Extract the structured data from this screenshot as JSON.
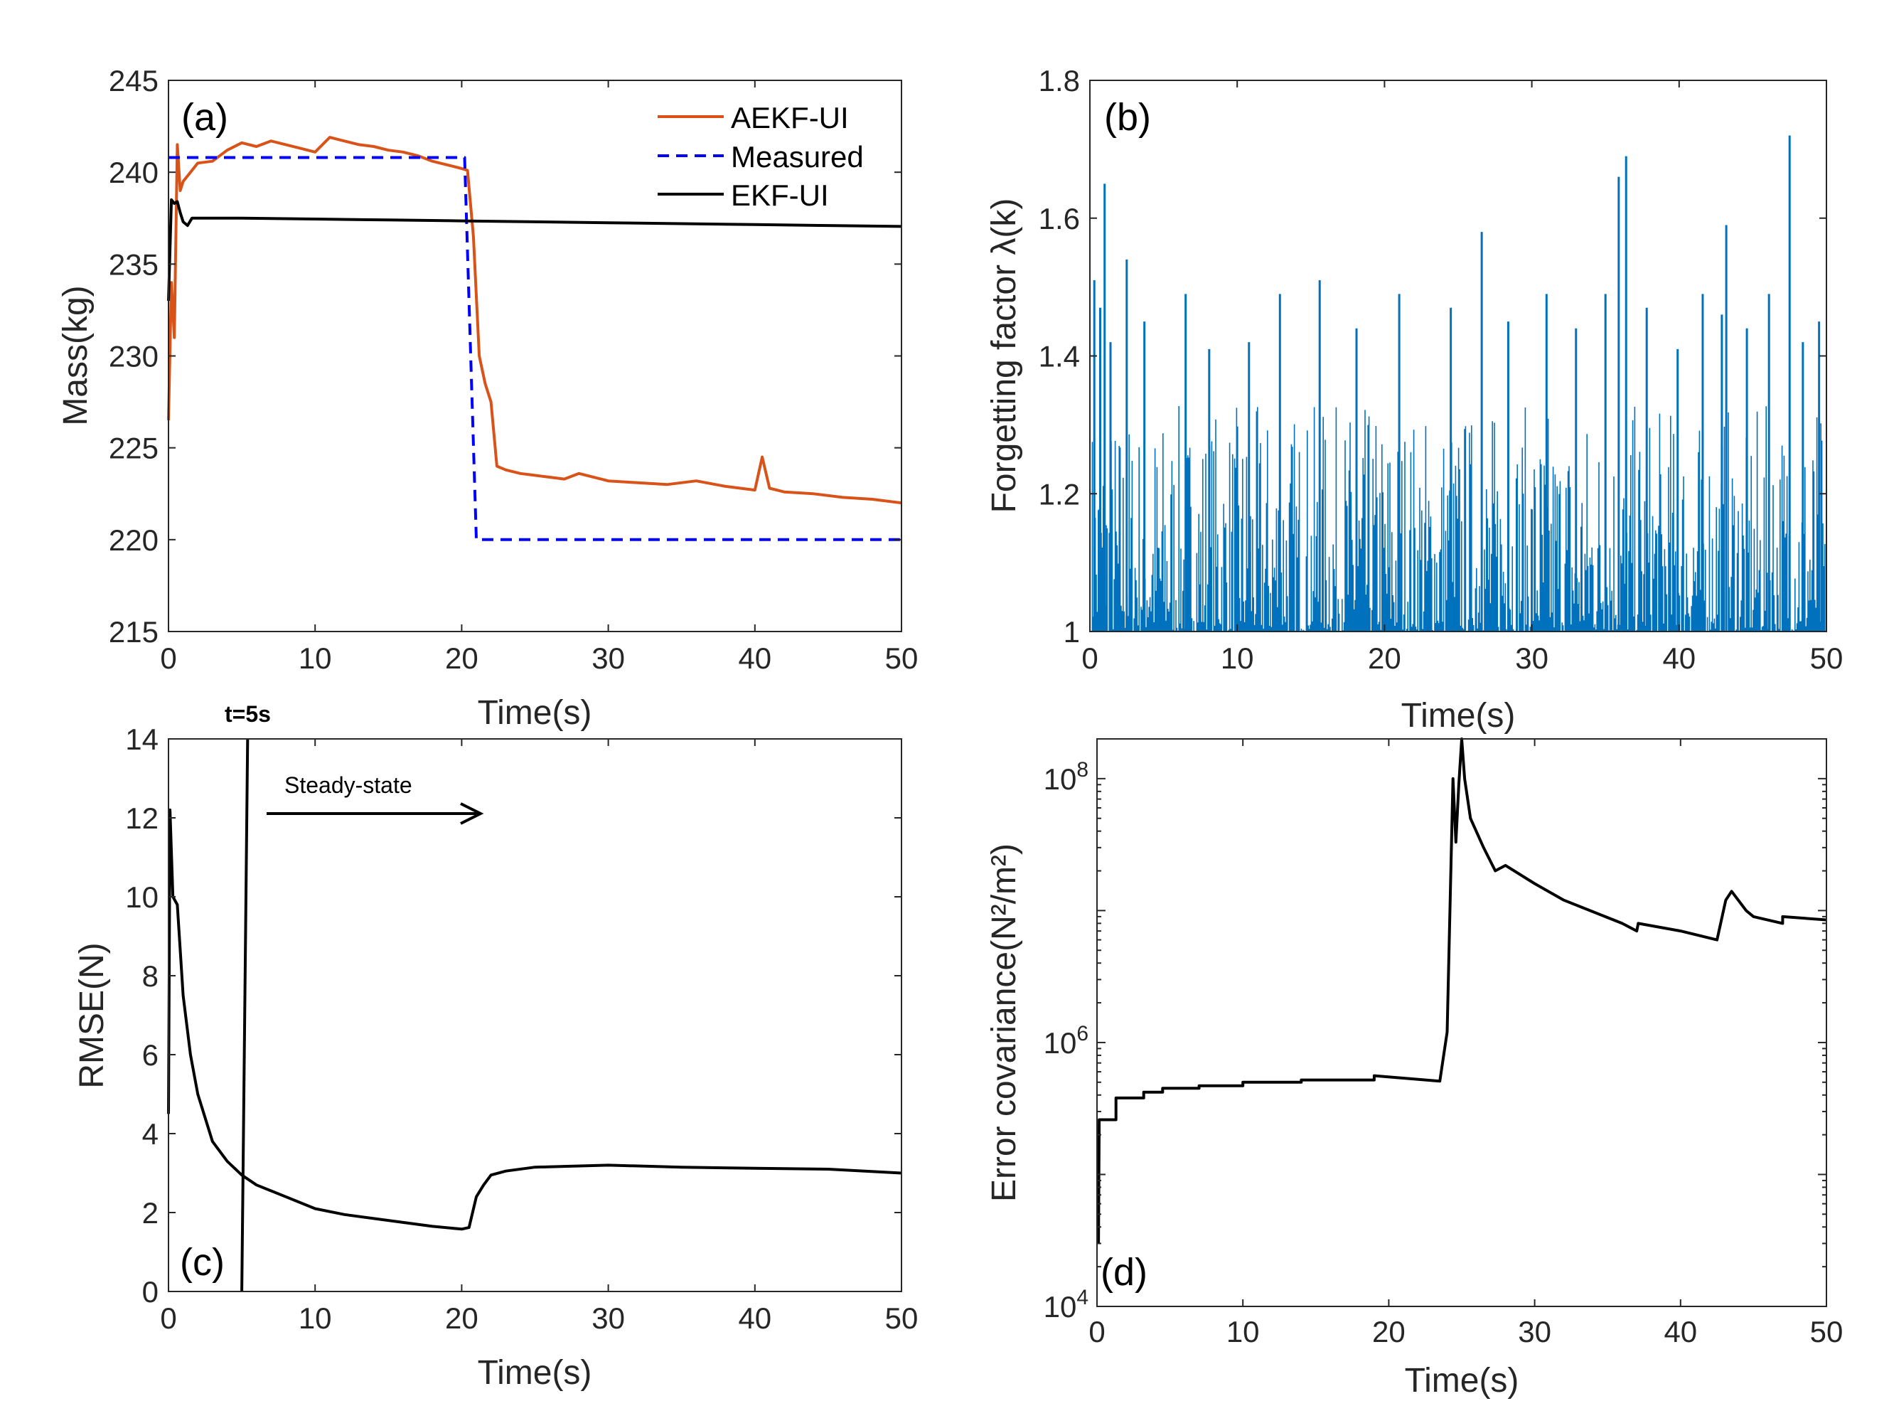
{
  "colors": {
    "orange": "#D95319",
    "blue": "#0000FF",
    "black": "#000000",
    "matlab_blue": "#0072BD"
  },
  "chart_data": [
    {
      "panel": "a",
      "type": "line",
      "panel_label": "(a)",
      "xlabel": "Time(s)",
      "ylabel": "Mass(kg)",
      "xlim": [
        0,
        50
      ],
      "ylim": [
        215,
        245
      ],
      "xticks": [
        0,
        10,
        20,
        30,
        40,
        50
      ],
      "yticks": [
        215,
        220,
        225,
        230,
        235,
        240,
        245
      ],
      "legend": {
        "position": "top-right",
        "entries": [
          "AEKF-UI",
          "Measured",
          "EKF-UI"
        ]
      },
      "series": [
        {
          "name": "AEKF-UI",
          "color": "#D95319",
          "style": "solid",
          "x": [
            0,
            0.2,
            0.4,
            0.6,
            0.8,
            1,
            1.5,
            2,
            3,
            4,
            5,
            6,
            7,
            8,
            9,
            10,
            11,
            12,
            13,
            14,
            15,
            16,
            17,
            18,
            19,
            20,
            20.4,
            20.8,
            21.2,
            21.6,
            22,
            22.4,
            23,
            24,
            25,
            26,
            27,
            28,
            30,
            32,
            34,
            36,
            38,
            40,
            40.5,
            41,
            42,
            44,
            46,
            48,
            50
          ],
          "y": [
            226.5,
            234,
            231,
            241.5,
            239,
            239.5,
            240,
            240.5,
            240.6,
            241.2,
            241.6,
            241.4,
            241.7,
            241.5,
            241.3,
            241.1,
            241.9,
            241.7,
            241.5,
            241.4,
            241.2,
            241.1,
            240.9,
            240.6,
            240.4,
            240.2,
            240.1,
            236.5,
            230,
            228.5,
            227.5,
            224,
            223.8,
            223.6,
            223.5,
            223.4,
            223.3,
            223.6,
            223.2,
            223.1,
            223.0,
            223.2,
            222.9,
            222.7,
            224.5,
            222.8,
            222.6,
            222.5,
            222.3,
            222.2,
            222.0
          ]
        },
        {
          "name": "Measured",
          "color": "#0000FF",
          "style": "dashed",
          "x": [
            0,
            20.2,
            21,
            50
          ],
          "y": [
            240.8,
            240.8,
            220,
            220
          ]
        },
        {
          "name": "EKF-UI",
          "color": "#000000",
          "style": "solid",
          "x": [
            0,
            0.2,
            0.4,
            0.6,
            0.8,
            1,
            1.3,
            1.6,
            2,
            5,
            10,
            15,
            20,
            25,
            30,
            35,
            40,
            45,
            50
          ],
          "y": [
            233,
            238.5,
            238.3,
            238.4,
            237.8,
            237.3,
            237.1,
            237.5,
            237.5,
            237.5,
            237.45,
            237.4,
            237.35,
            237.3,
            237.25,
            237.2,
            237.15,
            237.1,
            237.05
          ]
        }
      ]
    },
    {
      "panel": "b",
      "type": "line",
      "panel_label": "(b)",
      "xlabel": "Time(s)",
      "ylabel": "Forgetting factor λ(k)",
      "xlim": [
        0,
        50
      ],
      "ylim": [
        1,
        1.8
      ],
      "xticks": [
        0,
        10,
        20,
        30,
        40,
        50
      ],
      "yticks": [
        1,
        1.2,
        1.4,
        1.6,
        1.8
      ],
      "series": [
        {
          "name": "λ(k)",
          "color": "#0072BD",
          "style": "solid",
          "note": "dense oscillating signal mostly between 1.0 and about 1.3",
          "spikes_x": [
            0.3,
            0.7,
            1.0,
            1.4,
            2.5,
            3.7,
            6.5,
            8.1,
            10.8,
            12.9,
            15.6,
            18.1,
            21.0,
            24.5,
            26.6,
            28.4,
            31.0,
            33.0,
            35.0,
            35.9,
            36.4,
            37.8,
            39.9,
            41.6,
            42.9,
            43.2,
            44.6,
            46.1,
            47.5,
            48.4,
            49.5
          ],
          "spikes_y": [
            1.51,
            1.47,
            1.65,
            1.42,
            1.54,
            1.45,
            1.49,
            1.41,
            1.42,
            1.49,
            1.51,
            1.44,
            1.49,
            1.47,
            1.58,
            1.45,
            1.49,
            1.44,
            1.49,
            1.66,
            1.69,
            1.47,
            1.41,
            1.49,
            1.46,
            1.59,
            1.44,
            1.49,
            1.72,
            1.42,
            1.45
          ]
        }
      ]
    },
    {
      "panel": "c",
      "type": "line",
      "panel_label": "(c)",
      "xlabel": "Time(s)",
      "ylabel": "RMSE(N)",
      "xlim": [
        0,
        50
      ],
      "ylim": [
        0,
        14
      ],
      "xticks": [
        0,
        10,
        20,
        30,
        40,
        50
      ],
      "yticks": [
        0,
        2,
        4,
        6,
        8,
        10,
        12,
        14
      ],
      "annotations": [
        {
          "text": "t=5s",
          "x": 5
        },
        {
          "text": "Steady-state",
          "x_start": 6.5,
          "x_end": 21.5,
          "y": 12.1
        }
      ],
      "series": [
        {
          "name": "RMSE",
          "color": "#000000",
          "style": "solid",
          "x": [
            0,
            0.1,
            0.3,
            0.6,
            1,
            1.5,
            2,
            3,
            4,
            5,
            6,
            7,
            8,
            10,
            12,
            15,
            18,
            20,
            20.5,
            21,
            21.5,
            22,
            23,
            25,
            30,
            35,
            40,
            45,
            50
          ],
          "y": [
            4.5,
            12.2,
            10,
            9.8,
            7.5,
            6.0,
            5.0,
            3.8,
            3.3,
            2.95,
            2.7,
            2.55,
            2.4,
            2.1,
            1.95,
            1.8,
            1.65,
            1.58,
            1.62,
            2.4,
            2.7,
            2.95,
            3.05,
            3.15,
            3.2,
            3.15,
            3.12,
            3.1,
            3.0
          ]
        },
        {
          "name": "t=5s marker",
          "color": "#000000",
          "style": "solid",
          "x": [
            5.0,
            5.4
          ],
          "y": [
            0,
            14
          ]
        }
      ]
    },
    {
      "panel": "d",
      "type": "line",
      "panel_label": "(d)",
      "xlabel": "Time(s)",
      "ylabel": "Error covariance(N²/m²)",
      "yscale": "log",
      "xlim": [
        0,
        50
      ],
      "ylim": [
        10000,
        200000000
      ],
      "xticks": [
        0,
        10,
        20,
        30,
        40,
        50
      ],
      "ytick_labels": [
        {
          "base": "10",
          "exp": "4"
        },
        {
          "base": "10",
          "exp": "6"
        },
        {
          "base": "10",
          "exp": "8"
        }
      ],
      "series": [
        {
          "name": "Error covariance",
          "color": "#000000",
          "style": "solid",
          "x": [
            0.1,
            0.15,
            0.3,
            1.3,
            1.3,
            3.2,
            3.2,
            4.5,
            4.5,
            7,
            7,
            10,
            10,
            14,
            14,
            19,
            19,
            23.5,
            24,
            24.4,
            24.6,
            24.8,
            25,
            25.2,
            25.6,
            26.5,
            27.3,
            28,
            30,
            32,
            36,
            37,
            37.1,
            40,
            42.5,
            43.1,
            43.5,
            44.5,
            45,
            47,
            47,
            50
          ],
          "y": [
            30000,
            260000,
            260000,
            260000,
            380000,
            380000,
            420000,
            420000,
            450000,
            450000,
            470000,
            470000,
            500000,
            500000,
            520000,
            520000,
            560000,
            510000,
            1200000,
            100000000,
            33000000,
            90000000,
            200000000,
            100000000,
            50000000,
            30000000,
            20000000,
            22000000,
            16000000,
            12000000,
            8000000,
            7000000,
            8000000,
            7000000,
            6000000,
            12000000,
            14000000,
            10000000,
            9000000,
            8000000,
            9000000,
            8500000
          ]
        }
      ]
    }
  ]
}
